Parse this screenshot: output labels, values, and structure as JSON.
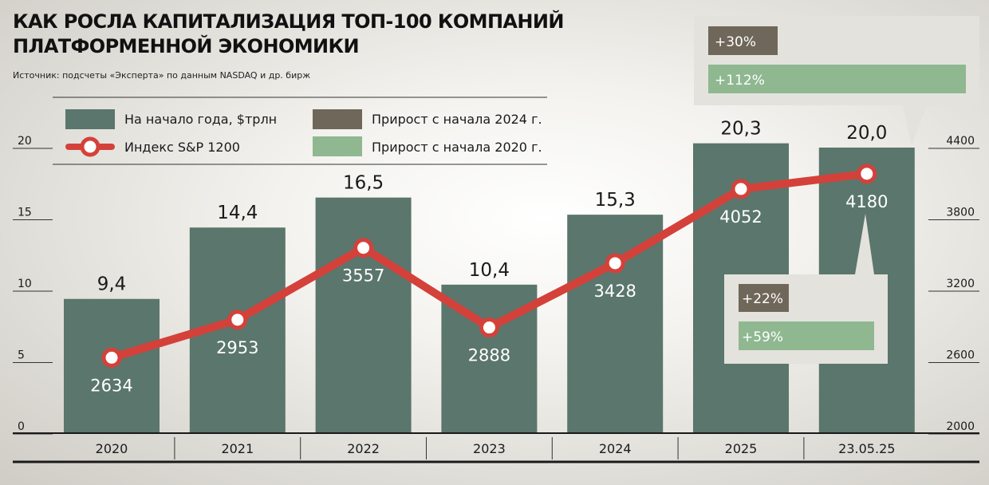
{
  "header": {
    "title_line1": "КАК РОСЛА КАПИТАЛИЗАЦИЯ ТОП-100 КОМПАНИЙ",
    "title_line2": "ПЛАТФОРМЕННОЙ ЭКОНОМИКИ",
    "source": "Источник: подсчеты «Эксперта» по данным NASDAQ и др. бирж"
  },
  "legend": {
    "bars": "На начало года, $трлн",
    "index": "Индекс S&P 1200",
    "growth_2024": "Прирост с начала 2024 г.",
    "growth_2020": "Прирост с начала 2020 г."
  },
  "colors": {
    "bar": "#5b766c",
    "line": "#d4413a",
    "growth_2024": "#6f6759",
    "growth_2020": "#8fb891",
    "callout": "#e4e2dd"
  },
  "chart_data": {
    "type": "bar",
    "categories": [
      "2020",
      "2021",
      "2022",
      "2023",
      "2024",
      "2025",
      "23.05.25"
    ],
    "series": [
      {
        "name": "На начало года, $трлн",
        "type": "bar",
        "axis": "left",
        "values": [
          9.4,
          14.4,
          16.5,
          10.4,
          15.3,
          20.3,
          20.0
        ],
        "labels": [
          "9,4",
          "14,4",
          "16,5",
          "10,4",
          "15,3",
          "20,3",
          "20,0"
        ]
      },
      {
        "name": "Индекс S&P 1200",
        "type": "line",
        "axis": "right",
        "values": [
          2634,
          2953,
          3557,
          2888,
          3428,
          4052,
          4180
        ],
        "labels": [
          "2634",
          "2953",
          "3557",
          "2888",
          "3428",
          "4052",
          "4180"
        ]
      }
    ],
    "y_left": {
      "ylim": [
        0,
        20
      ],
      "ticks": [
        "0",
        "5",
        "10",
        "15",
        "20"
      ]
    },
    "y_right": {
      "ylim": [
        2000,
        4400
      ],
      "ticks": [
        "2000",
        "2600",
        "3200",
        "3800",
        "4400"
      ]
    },
    "annotations": [
      {
        "for": "23.05.25",
        "growth_2024": "+30%",
        "growth_2020": "+112%"
      },
      {
        "for": "4180",
        "growth_2024": "+22%",
        "growth_2020": "+59%"
      }
    ]
  }
}
